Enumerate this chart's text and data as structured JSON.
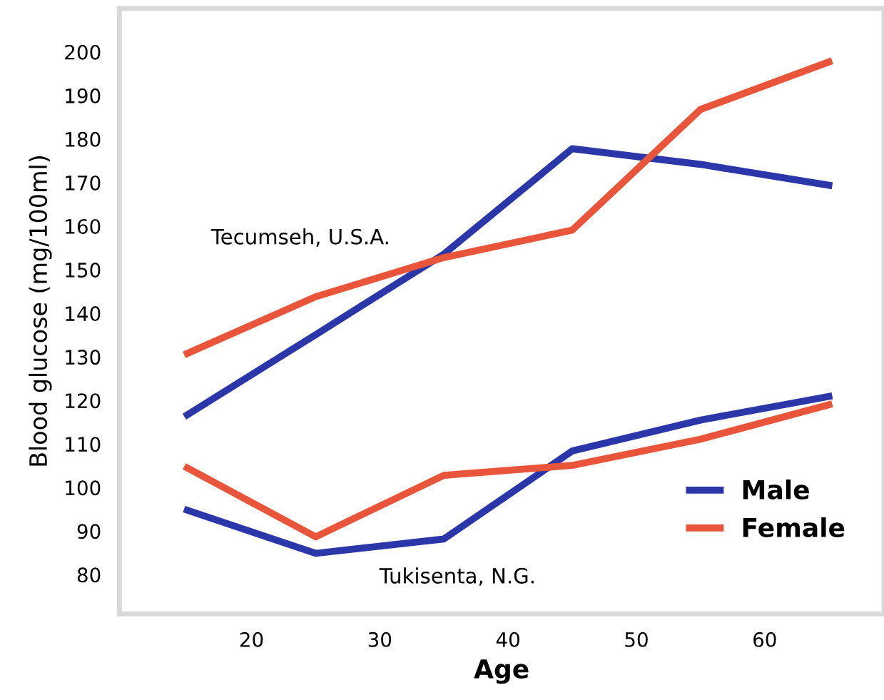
{
  "chart_data": {
    "type": "line",
    "xlabel": "Age",
    "ylabel": "Blood glucose (mg/100ml)",
    "x": [
      15,
      25,
      35,
      45,
      55,
      65
    ],
    "series": [
      {
        "name": "Male",
        "color": "#2b36a8",
        "values": [
          116.7,
          135.1,
          153.6,
          177.8,
          174.2,
          169.4
        ]
      },
      {
        "name": "Female",
        "color": "#e9553a",
        "values": [
          130.8,
          143.8,
          152.8,
          159.1,
          186.8,
          197.7
        ]
      },
      {
        "color": "#2b36a8",
        "values": [
          94.8,
          84.9,
          88.2,
          108.4,
          115.5,
          120.9
        ]
      },
      {
        "color": "#e9553a",
        "values": [
          104.5,
          88.7,
          102.8,
          105.1,
          111.1,
          119.0
        ]
      }
    ],
    "xlim": [
      9.7,
      69.3
    ],
    "ylim": [
      71,
      210
    ],
    "xticks": [
      20,
      30,
      40,
      50,
      60
    ],
    "yticks": [
      80,
      90,
      100,
      110,
      120,
      130,
      140,
      150,
      160,
      170,
      180,
      190,
      200
    ],
    "annotations": [
      "Tecumseh, U.S.A.",
      "Tukisenta, N.G."
    ],
    "legend": "bottom right",
    "grid": false,
    "marker": "none",
    "line_style": "solid"
  }
}
